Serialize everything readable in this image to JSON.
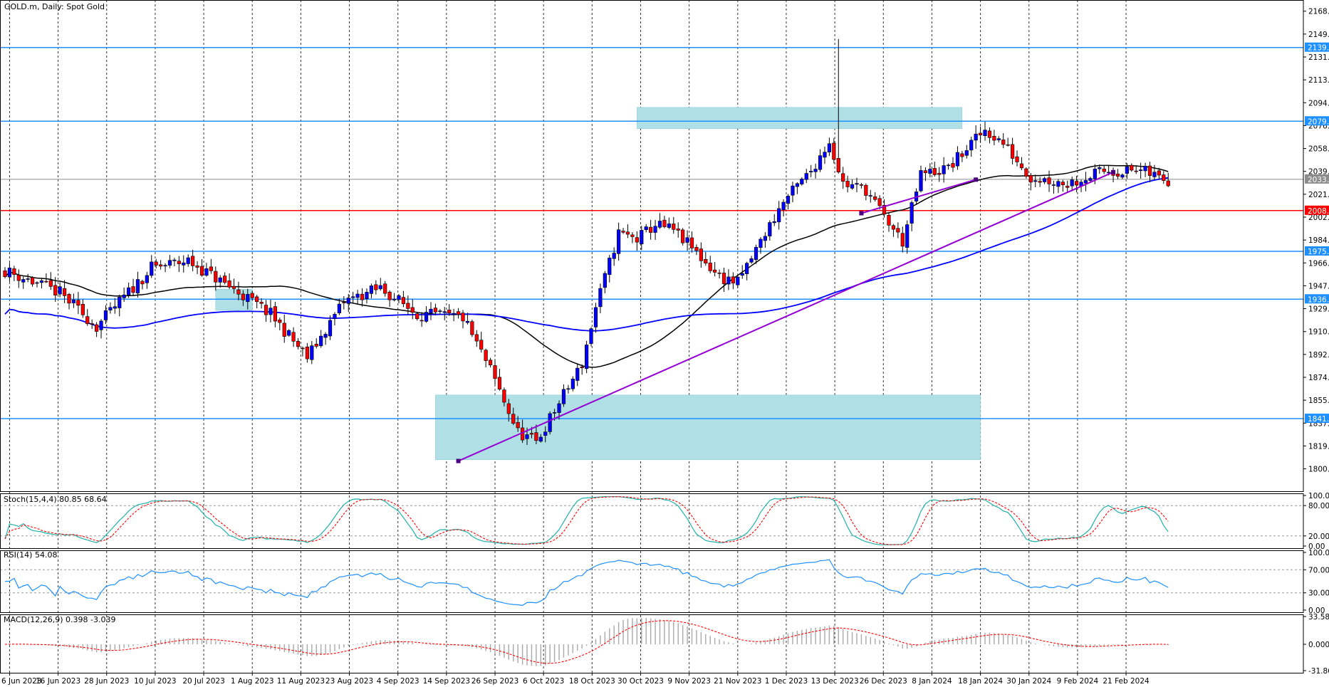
{
  "chart_data": {
    "type": "candlestick",
    "symbol_label": "GOLD.m, Daily:  Spot Gold",
    "price_axis": {
      "range": [
        1785,
        2175
      ],
      "ticks": [
        "2168.29",
        "2149.91",
        "2131.53",
        "2113.15",
        "2094.77",
        "2076.39",
        "2058.01",
        "2039.63",
        "2021.25",
        "2002.87",
        "1984.49",
        "1966.11",
        "1947.73",
        "1929.35",
        "1910.97",
        "1892.59",
        "1874.21",
        "1855.83",
        "1837.45",
        "1819.07",
        "1800.69"
      ]
    },
    "x_axis": {
      "labels": [
        "6 Jun 2023",
        "16 Jun 2023",
        "28 Jun 2023",
        "10 Jul 2023",
        "20 Jul 2023",
        "1 Aug 2023",
        "11 Aug 2023",
        "23 Aug 2023",
        "4 Sep 2023",
        "14 Sep 2023",
        "26 Sep 2023",
        "6 Oct 2023",
        "18 Oct 2023",
        "30 Oct 2023",
        "9 Nov 2023",
        "21 Nov 2023",
        "1 Dec 2023",
        "13 Dec 2023",
        "26 Dec 2023",
        "8 Jan 2024",
        "18 Jan 2024",
        "30 Jan 2024",
        "9 Feb 2024",
        "21 Feb 2024"
      ],
      "grid": true
    },
    "levels": [
      {
        "value": 2139.14,
        "label": "2139.14",
        "color": "#1e90ff"
      },
      {
        "value": 2079.93,
        "label": "2079.93",
        "color": "#1e90ff"
      },
      {
        "value": 2033.24,
        "label": "2033.24",
        "color": "#8c8c8c"
      },
      {
        "value": 2008.14,
        "label": "2008.14",
        "color": "#ff0000"
      },
      {
        "value": 1975.42,
        "label": "1975.42",
        "color": "#1e90ff"
      },
      {
        "value": 1936.96,
        "label": "1936.96",
        "color": "#1e90ff"
      },
      {
        "value": 1841.01,
        "label": "1841.01",
        "color": "#1e90ff"
      }
    ],
    "zones": [
      {
        "bars": [
          138,
          209
        ],
        "low": 2074,
        "high": 2091,
        "color": "#b0e0e6"
      },
      {
        "bars": [
          94,
          213
        ],
        "low": 1808,
        "high": 1860,
        "color": "#b0e0e6"
      },
      {
        "bars": [
          46,
          54
        ],
        "low": 1928,
        "high": 1945,
        "color": "#b0e0e6"
      }
    ],
    "trendlines": [
      {
        "from": [
          99,
          1807
        ],
        "to": [
          242,
          2039
        ],
        "color": "#9400d3"
      },
      {
        "from": [
          187,
          2006
        ],
        "to": [
          212,
          2033
        ],
        "color": "#9400d3"
      }
    ],
    "colors": {
      "up": "#0000ff",
      "down": "#ff0000",
      "sma_fast": "#000000",
      "sma_slow": "#0000ff"
    },
    "stochastic": {
      "label": "Stoch(15,4,4) 80.85 68.64",
      "range": [
        0,
        100
      ],
      "ticks": [
        "100.00",
        "80.00",
        "20.00",
        "0.00"
      ],
      "levels": [
        20,
        80
      ],
      "colors": {
        "k": "#20b2aa",
        "d": "#ff0000"
      }
    },
    "rsi": {
      "label": "RSI(14) 54.08",
      "range": [
        0,
        100
      ],
      "ticks": [
        "100.00",
        "70.00",
        "30.00",
        "0.00"
      ],
      "levels": [
        30,
        70
      ],
      "color": "#1e90ff"
    },
    "macd": {
      "label": "MACD(12,26,9) 0.398 -3.039",
      "range": [
        -31.863,
        33.582
      ],
      "ticks": [
        "33.582",
        "0.000",
        "-31.863"
      ],
      "colors": {
        "hist": "#a9a9a9",
        "signal": "#ff0000"
      }
    }
  }
}
